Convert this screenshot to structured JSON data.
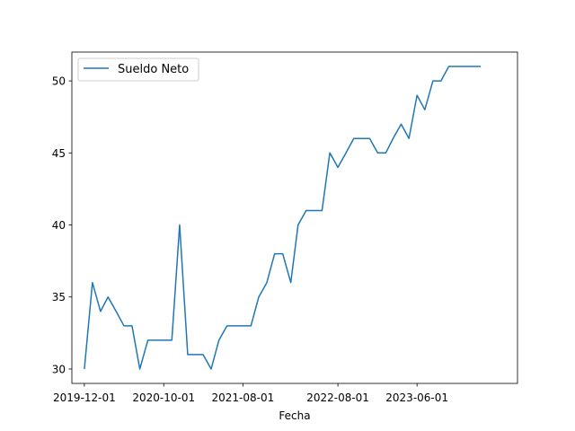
{
  "chart_data": {
    "type": "line",
    "title": "",
    "xlabel": "Fecha",
    "ylabel": "",
    "x_tick_labels": [
      "2019-12-01",
      "2020-10-01",
      "2021-08-01",
      "2022-08-01",
      "2023-06-01"
    ],
    "y_ticks": [
      30,
      35,
      40,
      45,
      50
    ],
    "ylim": [
      29,
      52
    ],
    "xlim": [
      "2019-10-14",
      "2024-06-21"
    ],
    "grid": false,
    "legend_position": "top-left",
    "series": [
      {
        "name": "Sueldo Neto",
        "color": "#1f77b4",
        "x": [
          "2019-12-01",
          "2020-01-01",
          "2020-02-01",
          "2020-03-01",
          "2020-04-01",
          "2020-05-01",
          "2020-06-01",
          "2020-07-01",
          "2020-08-01",
          "2020-09-01",
          "2020-10-01",
          "2020-11-01",
          "2020-12-01",
          "2021-01-01",
          "2021-02-01",
          "2021-03-01",
          "2021-04-01",
          "2021-05-01",
          "2021-06-01",
          "2021-07-01",
          "2021-08-01",
          "2021-09-01",
          "2021-10-01",
          "2021-11-01",
          "2021-12-01",
          "2022-01-01",
          "2022-02-01",
          "2022-03-01",
          "2022-04-01",
          "2022-05-01",
          "2022-06-01",
          "2022-07-01",
          "2022-08-01",
          "2022-09-01",
          "2022-10-01",
          "2022-11-01",
          "2022-12-01",
          "2023-01-01",
          "2023-02-01",
          "2023-03-01",
          "2023-04-01",
          "2023-05-01",
          "2023-06-01",
          "2023-07-01",
          "2023-08-01",
          "2023-09-01",
          "2023-10-01",
          "2023-11-01",
          "2023-12-01",
          "2024-01-01",
          "2024-02-01"
        ],
        "y": [
          30,
          36,
          34,
          35,
          34,
          33,
          33,
          30,
          32,
          32,
          32,
          32,
          40,
          31,
          31,
          31,
          30,
          32,
          33,
          33,
          33,
          33,
          35,
          36,
          38,
          38,
          36,
          40,
          41,
          41,
          41,
          45,
          44,
          45,
          46,
          46,
          46,
          45,
          45,
          46,
          47,
          46,
          49,
          48,
          50,
          50,
          51,
          51,
          51,
          51,
          51
        ]
      }
    ]
  }
}
